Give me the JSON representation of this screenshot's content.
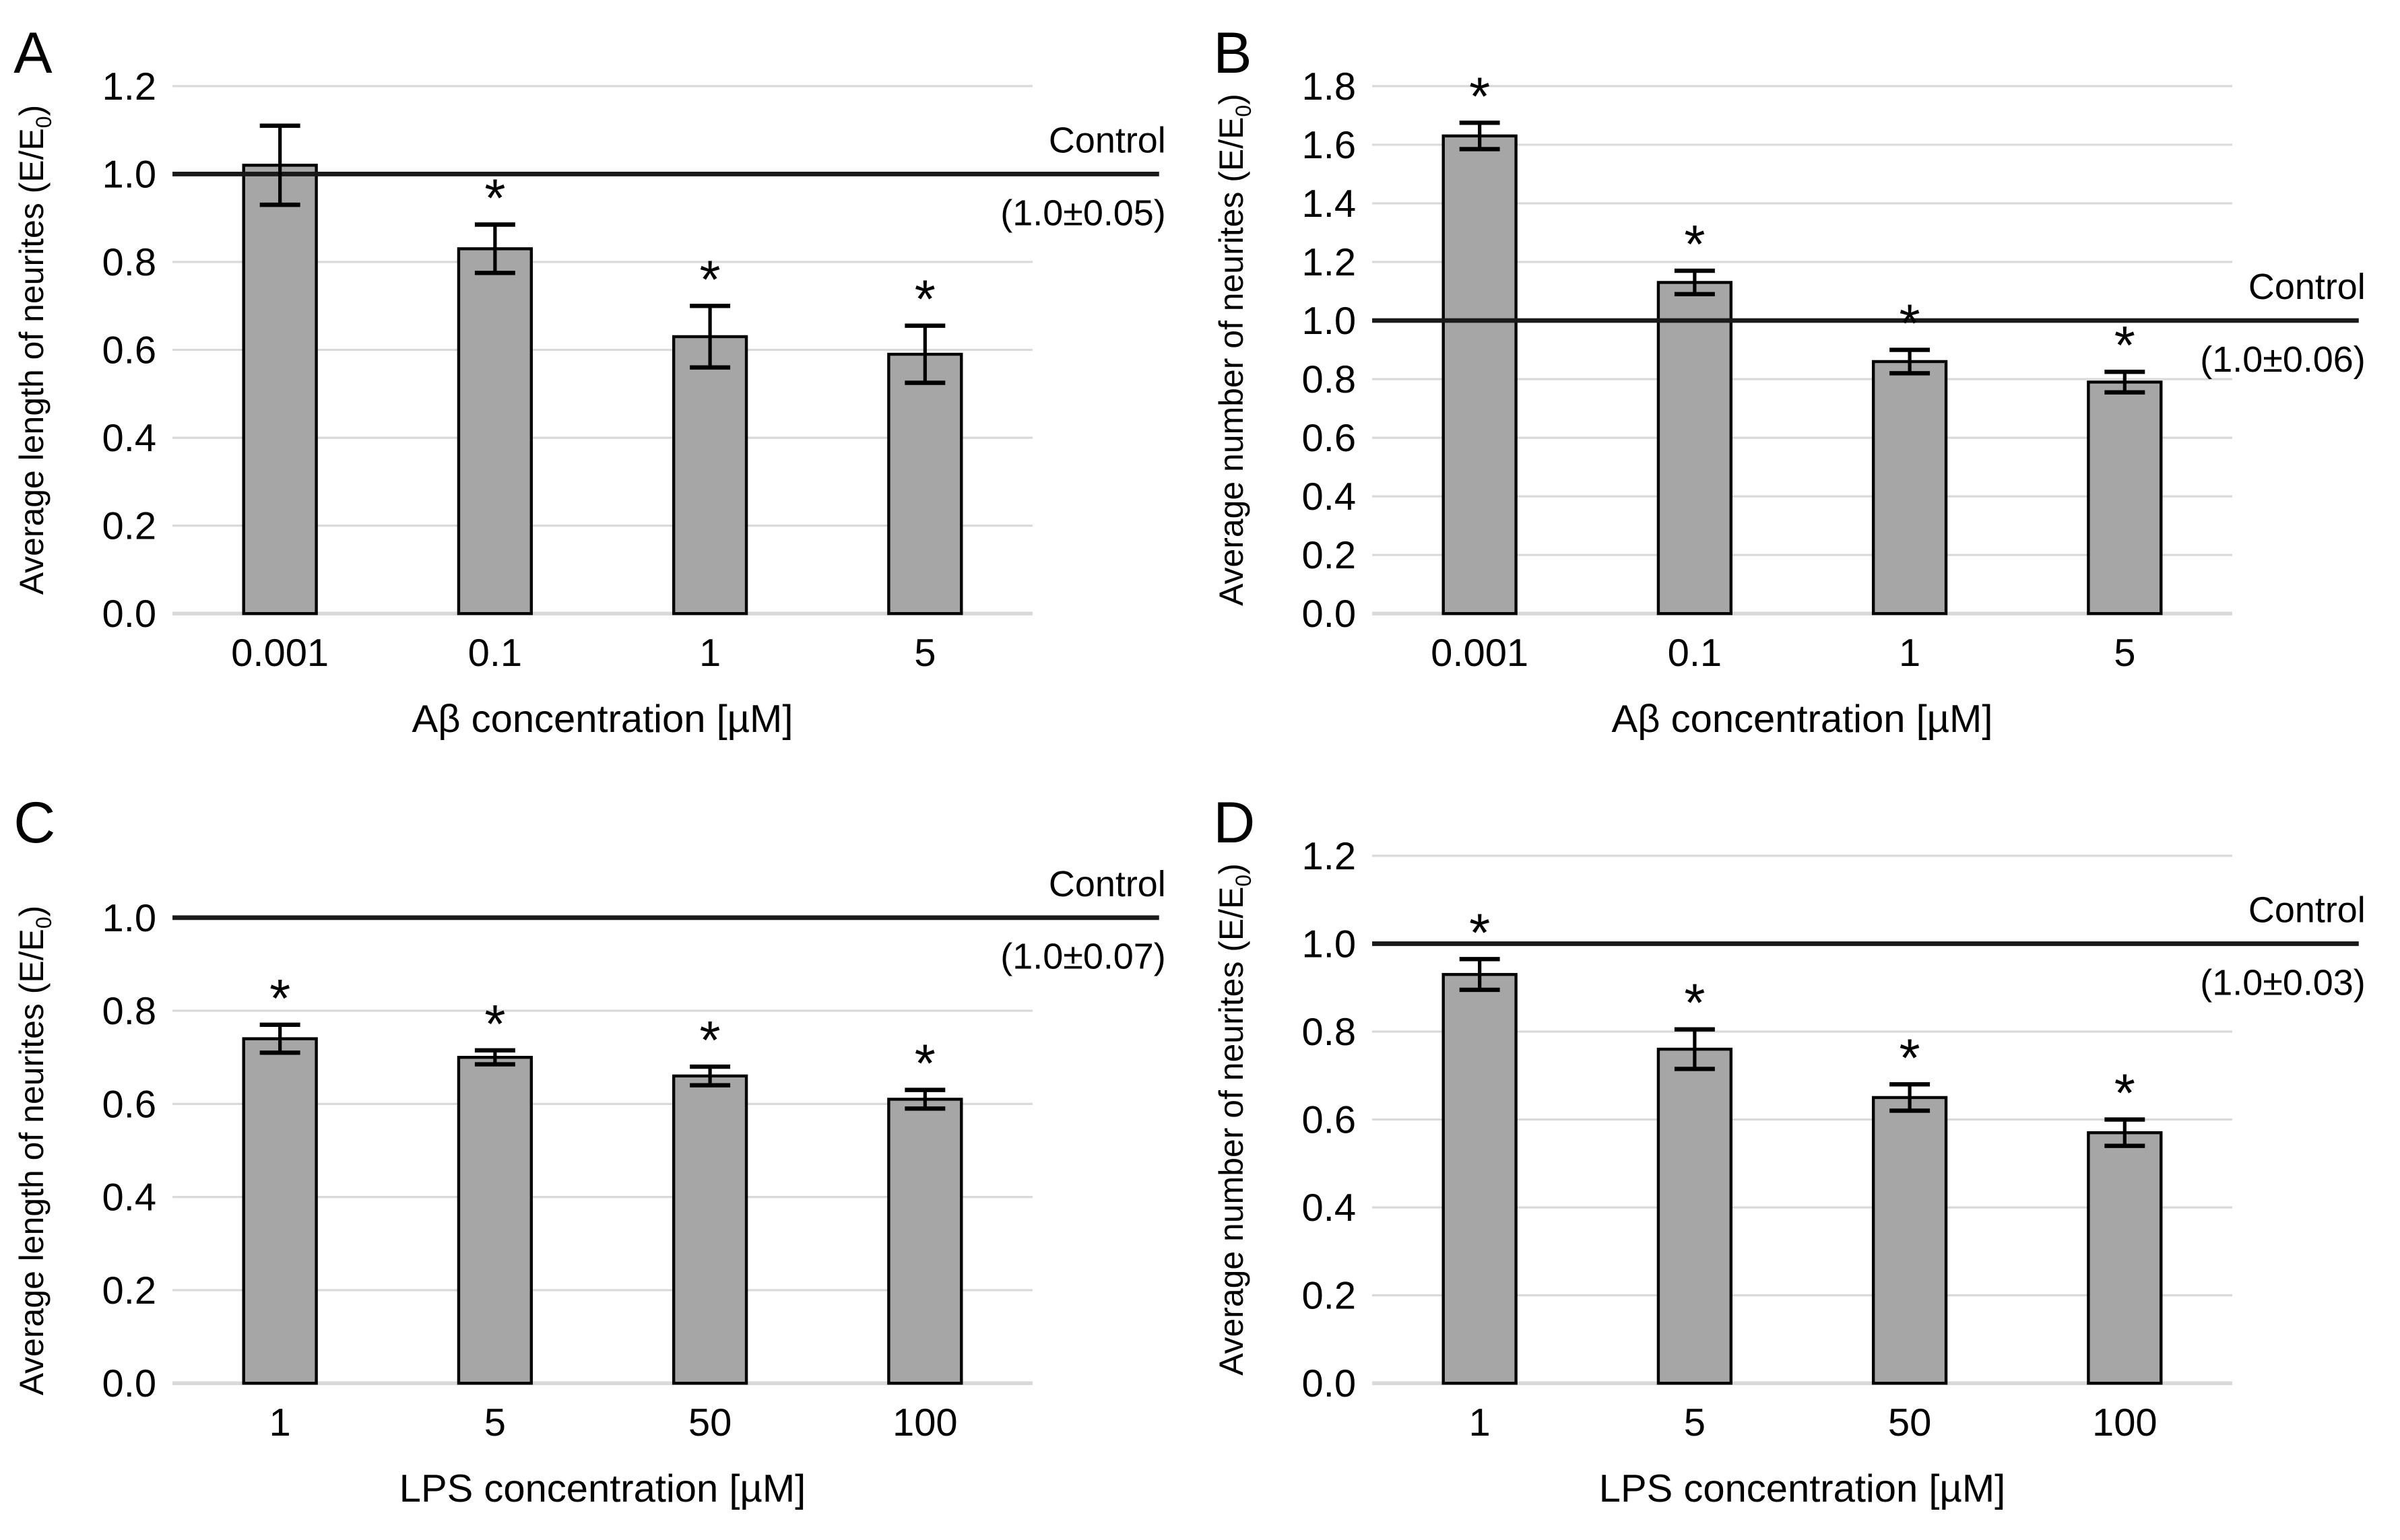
{
  "figure": {
    "background": "#ffffff",
    "description_labels": {
      "control_label": "Control",
      "significance_marker": "*"
    }
  },
  "style": {
    "bar_fill": "#a6a6a6",
    "bar_border": "#000000",
    "gridline_color": "#d9d9d9",
    "axis_baseline_color": "#d9d9d9",
    "control_line_color": "#1a1a1a",
    "error_bar_color": "#000000",
    "text_color": "#000000"
  },
  "chart_data": [
    {
      "panel_label": "A",
      "type": "bar",
      "title": "",
      "ylabel_prefix": "Average length of neurites (E/E",
      "ylabel_sub": "0",
      "ylabel_suffix": ")",
      "xlabel": "Aβ concentration [µM]",
      "categories": [
        "0.001",
        "0.1",
        "1",
        "5"
      ],
      "values": [
        1.02,
        0.83,
        0.63,
        0.59
      ],
      "errors": [
        0.09,
        0.055,
        0.07,
        0.065
      ],
      "significant": [
        false,
        true,
        true,
        true
      ],
      "control": {
        "label": "Control",
        "value_text": "(1.0±0.05)",
        "value": 1.0
      },
      "ylim": [
        0,
        1.2
      ],
      "yticks": [
        0,
        0.2,
        0.4,
        0.6,
        0.8,
        1.0,
        1.2
      ],
      "ytick_labels": [
        "0.0",
        "0.2",
        "0.4",
        "0.6",
        "0.8",
        "1.0",
        "1.2"
      ],
      "grid": true,
      "legend": null
    },
    {
      "panel_label": "B",
      "type": "bar",
      "title": "",
      "ylabel_prefix": "Average number of neurites (E/E",
      "ylabel_sub": "0",
      "ylabel_suffix": ")",
      "xlabel": "Aβ concentration [µM]",
      "categories": [
        "0.001",
        "0.1",
        "1",
        "5"
      ],
      "values": [
        1.63,
        1.13,
        0.86,
        0.79
      ],
      "errors": [
        0.045,
        0.04,
        0.04,
        0.035
      ],
      "significant": [
        true,
        true,
        true,
        true
      ],
      "control": {
        "label": "Control",
        "value_text": "(1.0±0.06)",
        "value": 1.0
      },
      "ylim": [
        0,
        1.8
      ],
      "yticks": [
        0,
        0.2,
        0.4,
        0.6,
        0.8,
        1.0,
        1.2,
        1.4,
        1.6,
        1.8
      ],
      "ytick_labels": [
        "0.0",
        "0.2",
        "0.4",
        "0.6",
        "0.8",
        "1.0",
        "1.2",
        "1.4",
        "1.6",
        "1.8"
      ],
      "grid": true,
      "legend": null
    },
    {
      "panel_label": "C",
      "type": "bar",
      "title": "",
      "ylabel_prefix": "Average length of neurites (E/E",
      "ylabel_sub": "0",
      "ylabel_suffix": ")",
      "xlabel": "LPS concentration [µM]",
      "categories": [
        "1",
        "5",
        "50",
        "100"
      ],
      "values": [
        0.74,
        0.7,
        0.66,
        0.61
      ],
      "errors": [
        0.03,
        0.015,
        0.02,
        0.02
      ],
      "significant": [
        true,
        true,
        true,
        true
      ],
      "control": {
        "label": "Control",
        "value_text": "(1.0±0.07)",
        "value": 1.0
      },
      "ylim": [
        0,
        1.0
      ],
      "yticks": [
        0,
        0.2,
        0.4,
        0.6,
        0.8,
        1.0
      ],
      "ytick_labels": [
        "0.0",
        "0.2",
        "0.4",
        "0.6",
        "0.8",
        "1.0"
      ],
      "grid": true,
      "legend": null
    },
    {
      "panel_label": "D",
      "type": "bar",
      "title": "",
      "ylabel_prefix": "Average number of neurites (E/E",
      "ylabel_sub": "0",
      "ylabel_suffix": ")",
      "xlabel": "LPS concentration [µM]",
      "categories": [
        "1",
        "5",
        "50",
        "100"
      ],
      "values": [
        0.93,
        0.76,
        0.65,
        0.57
      ],
      "errors": [
        0.035,
        0.045,
        0.03,
        0.03
      ],
      "significant": [
        true,
        true,
        true,
        true
      ],
      "control": {
        "label": "Control",
        "value_text": "(1.0±0.03)",
        "value": 1.0
      },
      "ylim": [
        0,
        1.2
      ],
      "yticks": [
        0,
        0.2,
        0.4,
        0.6,
        0.8,
        1.0,
        1.2
      ],
      "ytick_labels": [
        "0.0",
        "0.2",
        "0.4",
        "0.6",
        "0.8",
        "1.0",
        "1.2"
      ],
      "grid": true,
      "legend": null
    }
  ]
}
